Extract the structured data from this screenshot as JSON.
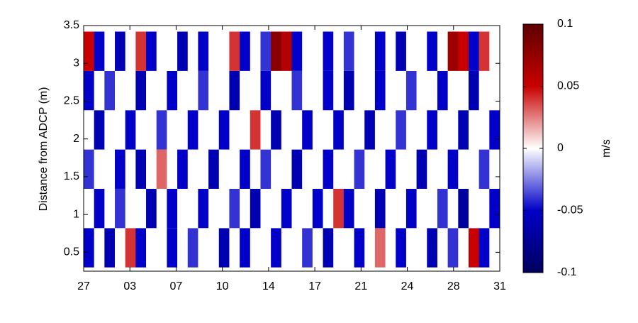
{
  "chart_data": {
    "type": "heatmap",
    "y_label": "Distance from ADCP (m)",
    "x_labels": [
      "27",
      "03",
      "07",
      "10",
      "14",
      "17",
      "21",
      "24",
      "28",
      "31"
    ],
    "ylim": [
      0.25,
      3.5
    ],
    "yticks": [
      0.5,
      1,
      1.5,
      2,
      2.5,
      3,
      3.5
    ],
    "y_edges": [
      0.3,
      0.82,
      1.34,
      1.86,
      2.38,
      2.9,
      3.42
    ],
    "z": [
      [
        -0.05,
        0,
        -0.06,
        0,
        0.04,
        -0.05,
        0,
        0,
        -0.05,
        0,
        -0.04,
        0,
        0,
        -0.06,
        0,
        -0.05,
        0,
        0,
        -0.05,
        0,
        0,
        -0.04,
        0,
        -0.06,
        0,
        0,
        -0.05,
        0,
        0.03,
        0,
        -0.05,
        0,
        0,
        -0.06,
        0,
        -0.04,
        0,
        0.05,
        -0.05,
        0
      ],
      [
        0,
        -0.05,
        0,
        -0.04,
        0,
        0,
        -0.06,
        0,
        -0.05,
        0,
        0,
        -0.05,
        0,
        0,
        -0.04,
        0,
        -0.06,
        0,
        0,
        -0.05,
        0,
        0,
        -0.05,
        0,
        0.04,
        -0.05,
        0,
        0,
        -0.06,
        0,
        0,
        -0.05,
        0,
        0,
        -0.04,
        0,
        -0.07,
        0,
        0,
        -0.05
      ],
      [
        -0.04,
        0,
        0,
        -0.05,
        0,
        -0.06,
        0,
        0.03,
        0,
        -0.05,
        0,
        0,
        -0.06,
        0,
        0,
        -0.05,
        0,
        -0.04,
        0,
        0,
        -0.06,
        0,
        0,
        -0.05,
        0,
        0,
        -0.04,
        0,
        0,
        -0.05,
        0,
        0,
        -0.06,
        0,
        0,
        -0.05,
        0,
        0,
        -0.04,
        0
      ],
      [
        0,
        -0.06,
        0,
        0,
        -0.05,
        0,
        0,
        -0.04,
        0,
        0,
        -0.05,
        0,
        0,
        -0.05,
        0,
        0,
        0.04,
        0,
        -0.06,
        0,
        0,
        -0.05,
        0,
        0,
        -0.05,
        0,
        0,
        -0.06,
        0,
        0,
        -0.04,
        0,
        0,
        -0.05,
        0,
        0,
        -0.06,
        0,
        0,
        -0.05
      ],
      [
        -0.05,
        0,
        -0.04,
        0,
        0,
        -0.06,
        0,
        0,
        -0.05,
        0,
        0,
        -0.04,
        0,
        0,
        -0.06,
        0,
        0,
        -0.05,
        0,
        0,
        -0.04,
        0,
        0,
        -0.05,
        0,
        -0.06,
        0,
        0,
        -0.05,
        0,
        0,
        -0.04,
        0,
        0,
        -0.05,
        0,
        0,
        -0.06,
        0,
        0
      ],
      [
        0.05,
        -0.05,
        0,
        -0.06,
        0,
        0.04,
        -0.05,
        0,
        0,
        -0.06,
        0,
        -0.05,
        0,
        0,
        0.04,
        -0.05,
        0,
        -0.04,
        0.08,
        0.06,
        -0.05,
        0,
        0,
        -0.05,
        0,
        -0.04,
        0,
        0,
        -0.05,
        0,
        -0.06,
        0,
        0,
        -0.05,
        0,
        0.07,
        0.05,
        -0.05,
        0.04,
        0
      ]
    ],
    "clim": [
      -0.1,
      0.1
    ],
    "cticks": [
      -0.1,
      -0.05,
      0,
      0.05,
      0.1
    ],
    "colors": [
      "#00005e",
      "#0000c8",
      "#ffffff",
      "#c80000",
      "#5e0000"
    ],
    "colorbar_label": "m/s"
  }
}
